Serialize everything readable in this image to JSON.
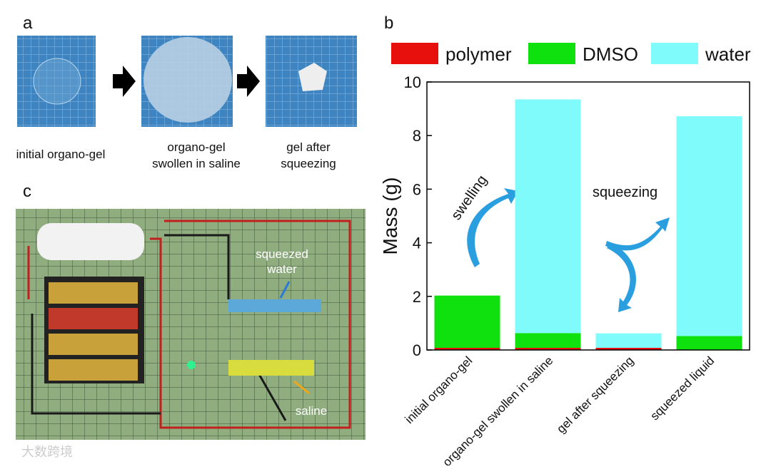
{
  "panels": {
    "a": "a",
    "b": "b",
    "c": "c"
  },
  "photo_captions": [
    [
      "initial organo-gel"
    ],
    [
      "organo-gel",
      "swollen in saline"
    ],
    [
      "gel after",
      "squeezing"
    ]
  ],
  "photo_c_labels": {
    "squeezed_water": [
      "squeezed",
      "water"
    ],
    "saline": "saline"
  },
  "watermark": "大数跨境",
  "chart_data": {
    "type": "stacked_bar",
    "ylabel": "Mass (g)",
    "categories": [
      "initial organo-gel",
      "organo-gel swollen in saline",
      "gel after squeezing",
      "squeezed liquid"
    ],
    "series": [
      {
        "name": "polymer",
        "color": "#e8100c",
        "values": [
          0.08,
          0.08,
          0.08,
          0
        ]
      },
      {
        "name": "DMSO",
        "color": "#0fe10f",
        "values": [
          1.95,
          0.55,
          0,
          0.52
        ]
      },
      {
        "name": "water",
        "color": "#80fbfb",
        "values": [
          0,
          8.72,
          0.54,
          8.2
        ]
      }
    ],
    "ylim": [
      0,
      10
    ],
    "yticks": [
      0,
      2,
      4,
      6,
      8,
      10
    ],
    "annotations": [
      "swelling",
      "squeezing"
    ],
    "legend": "top"
  }
}
